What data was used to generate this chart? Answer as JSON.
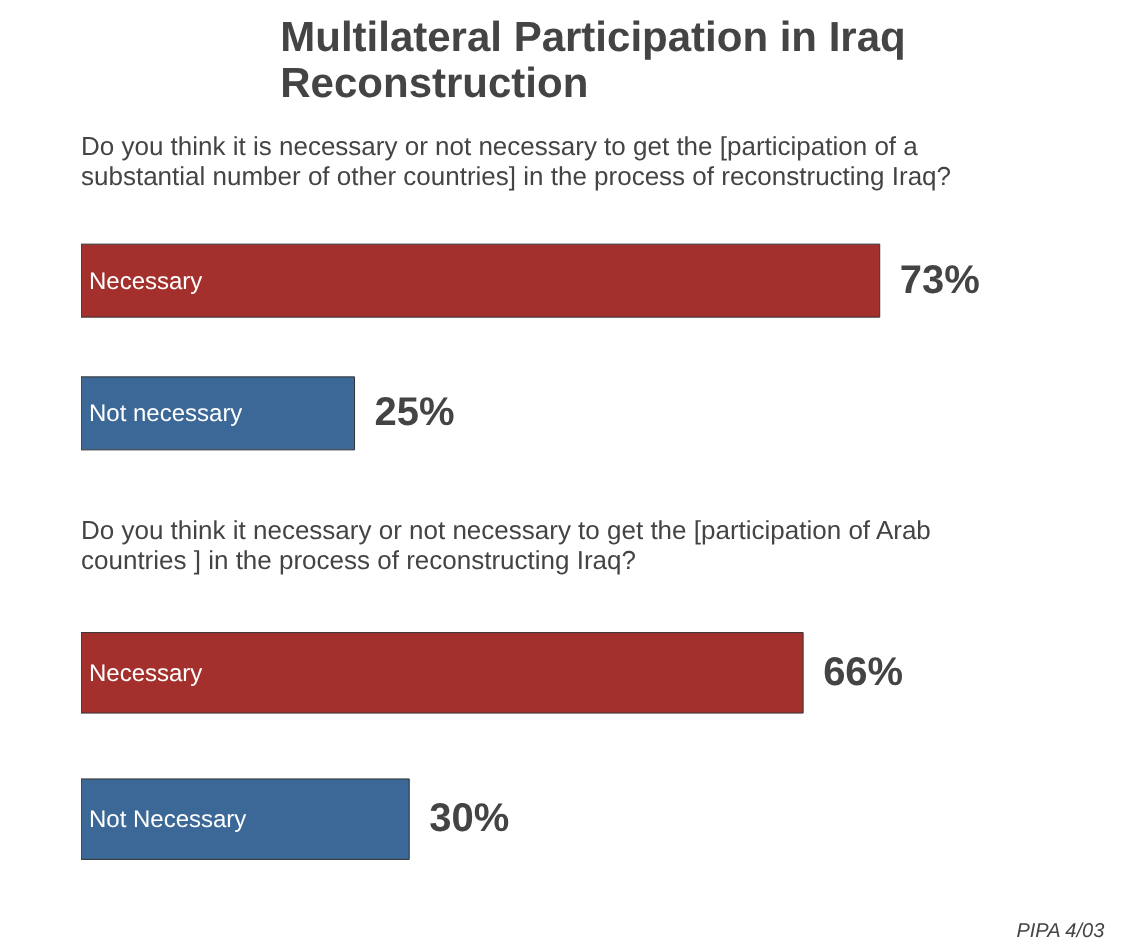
{
  "chart_data": [
    {
      "type": "bar",
      "orientation": "horizontal",
      "title": "Multilateral Participation in Iraq Reconstruction",
      "subtitle": "Do you think it is necessary or not necessary  to get the [participation of a substantial number of other countries] in the process of reconstructing Iraq?",
      "categories": [
        "Necessary",
        "Not necessary"
      ],
      "values": [
        73,
        25
      ],
      "colors": [
        "#a3302c",
        "#3b6896"
      ],
      "value_labels": [
        "73%",
        "25%"
      ]
    },
    {
      "type": "bar",
      "orientation": "horizontal",
      "subtitle": "Do you think it necessary or not necessary to get the [participation of Arab countries ] in the process of reconstructing Iraq?",
      "categories": [
        "Necessary",
        "Not Necessary"
      ],
      "values": [
        66,
        30
      ],
      "colors": [
        "#a3302c",
        "#3b6896"
      ],
      "value_labels": [
        "66%",
        "30%"
      ],
      "annotations": [
        "PIPA 4/03"
      ]
    }
  ]
}
